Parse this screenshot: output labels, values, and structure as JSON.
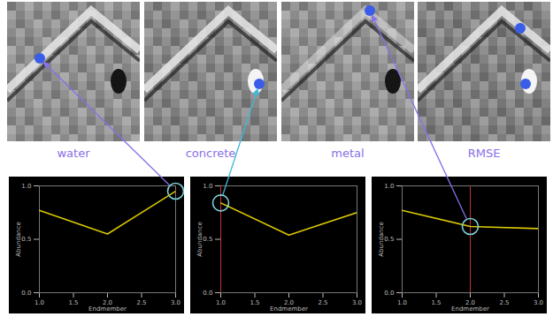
{
  "images": {
    "labels": [
      "water",
      "concrete",
      "metal",
      "RMSE"
    ]
  },
  "chart_data": [
    {
      "type": "line",
      "x_label": "Endmember",
      "y_label": "Abundance",
      "x": [
        1.0,
        2.0,
        3.0
      ],
      "values": [
        0.77,
        0.55,
        0.95
      ],
      "color": "#d8c800",
      "xlim": [
        1.0,
        3.0
      ],
      "xticks": [
        {
          "value": 1,
          "label": "1.0"
        },
        {
          "value": 1.5,
          "label": "1.5"
        },
        {
          "value": 2,
          "label": "2.0"
        },
        {
          "value": 2.5,
          "label": "2.5"
        },
        {
          "value": 3,
          "label": "3.0"
        }
      ],
      "ylim": [
        0,
        1
      ],
      "yticks": [
        {
          "value": 0,
          "label": "0.0"
        },
        {
          "value": 0.5,
          "label": "0.5"
        },
        {
          "value": 1,
          "label": "1.0"
        }
      ],
      "highlight_x": 3.0
    },
    {
      "type": "line",
      "x_label": "Endmember",
      "y_label": "Abundance",
      "x": [
        1.0,
        2.0,
        3.0
      ],
      "values": [
        0.84,
        0.54,
        0.75
      ],
      "color": "#d8c800",
      "xlim": [
        1.0,
        3.0
      ],
      "xticks": [
        {
          "value": 1,
          "label": "1.0"
        },
        {
          "value": 1.5,
          "label": "1.5"
        },
        {
          "value": 2,
          "label": "2.0"
        },
        {
          "value": 2.5,
          "label": "2.5"
        },
        {
          "value": 3,
          "label": "3.0"
        }
      ],
      "ylim": [
        0,
        1
      ],
      "yticks": [
        {
          "value": 0,
          "label": "0.0"
        },
        {
          "value": 0.5,
          "label": "0.5"
        },
        {
          "value": 1,
          "label": "1.0"
        }
      ],
      "highlight_x": 1.0,
      "cursor_x": 1.0
    },
    {
      "type": "line",
      "x_label": "Endmember",
      "y_label": "Abundance",
      "x": [
        1.0,
        2.0,
        3.0
      ],
      "values": [
        0.77,
        0.62,
        0.6
      ],
      "color": "#d8c800",
      "xlim": [
        1.0,
        3.0
      ],
      "xticks": [
        {
          "value": 1,
          "label": "1.0"
        },
        {
          "value": 1.5,
          "label": "1.5"
        },
        {
          "value": 2,
          "label": "2.0"
        },
        {
          "value": 2.5,
          "label": "2.5"
        },
        {
          "value": 3,
          "label": "3.0"
        }
      ],
      "ylim": [
        0,
        1
      ],
      "yticks": [
        {
          "value": 0,
          "label": "0.0"
        },
        {
          "value": 0.5,
          "label": "0.5"
        },
        {
          "value": 1,
          "label": "1.0"
        }
      ],
      "highlight_x": 2.0,
      "cursor_x": 2.0
    }
  ]
}
